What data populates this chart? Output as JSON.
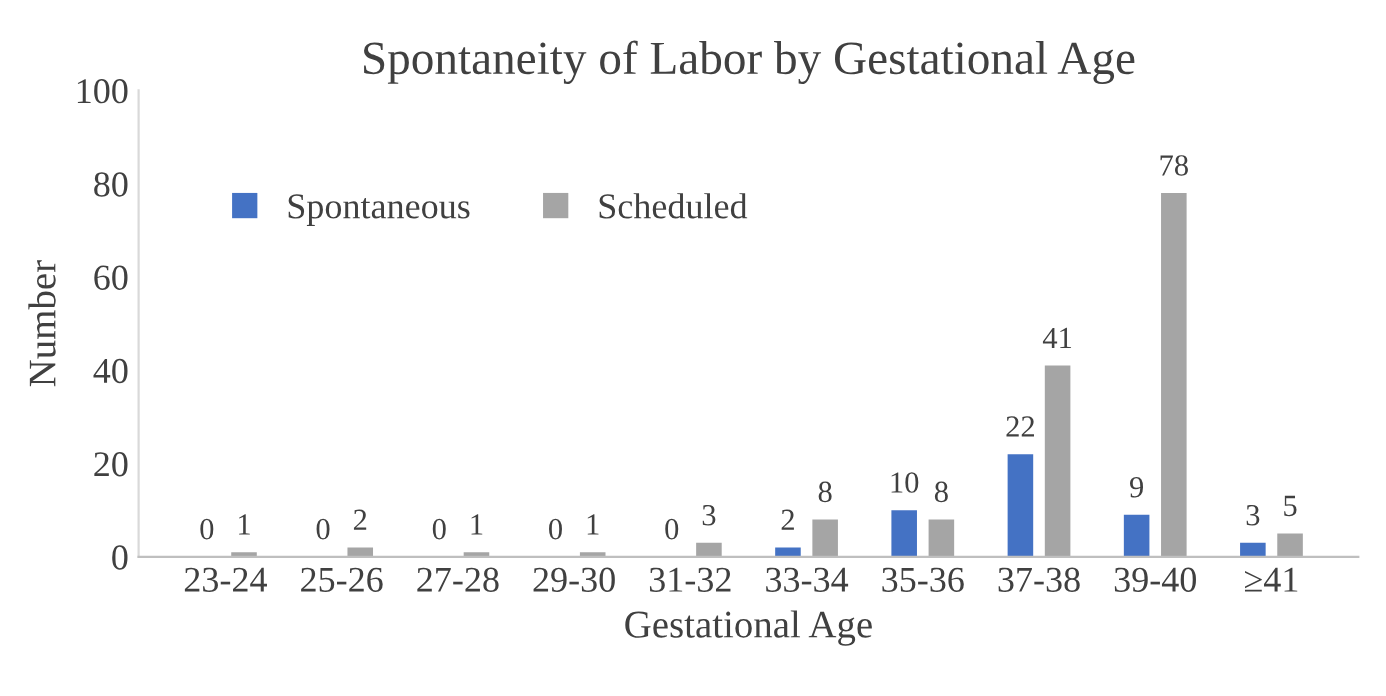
{
  "chart_data": {
    "type": "bar",
    "title": "Spontaneity of Labor by Gestational Age",
    "xlabel": "Gestational Age",
    "ylabel": "Number",
    "categories": [
      "23-24",
      "25-26",
      "27-28",
      "29-30",
      "31-32",
      "33-34",
      "35-36",
      "37-38",
      "39-40",
      "≥41"
    ],
    "series": [
      {
        "name": "Spontaneous",
        "color": "#4472c4",
        "values": [
          0,
          0,
          0,
          0,
          0,
          2,
          10,
          22,
          9,
          3
        ]
      },
      {
        "name": "Scheduled",
        "color": "#a5a5a5",
        "values": [
          1,
          2,
          1,
          1,
          3,
          8,
          8,
          41,
          78,
          5
        ]
      }
    ],
    "ylim": [
      0,
      100
    ],
    "yticks": [
      0,
      20,
      40,
      60,
      80,
      100
    ],
    "grid": false,
    "legend": "top left",
    "data_labels": true
  }
}
